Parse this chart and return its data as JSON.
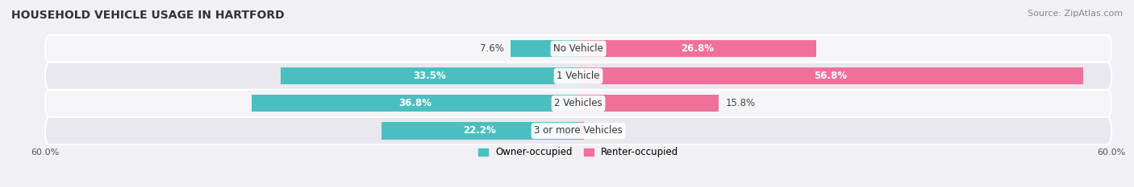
{
  "title": "HOUSEHOLD VEHICLE USAGE IN HARTFORD",
  "source": "Source: ZipAtlas.com",
  "categories": [
    "No Vehicle",
    "1 Vehicle",
    "2 Vehicles",
    "3 or more Vehicles"
  ],
  "owner_values": [
    7.6,
    33.5,
    36.8,
    22.2
  ],
  "renter_values": [
    26.8,
    56.8,
    15.8,
    0.63
  ],
  "owner_color": "#4BBFBF",
  "renter_color": "#F07099",
  "owner_label": "Owner-occupied",
  "renter_label": "Renter-occupied",
  "xlim_left": -60,
  "xlim_right": 60,
  "bar_height": 0.62,
  "background_color": "#f0f0f5",
  "row_bg_light": "#f5f5f8",
  "row_bg_dark": "#e8e8ee",
  "title_fontsize": 10,
  "source_fontsize": 8,
  "label_fontsize": 8.5,
  "category_fontsize": 8.5,
  "axis_label_fontsize": 8,
  "legend_fontsize": 8.5
}
